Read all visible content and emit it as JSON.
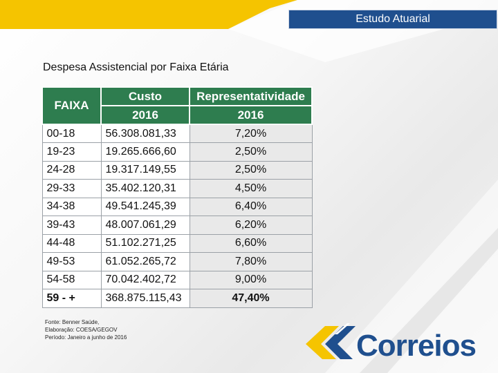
{
  "header": {
    "title": "Estudo Atuarial"
  },
  "slide": {
    "title": "Despesa Assistencial por Faixa Etária"
  },
  "table": {
    "headers": {
      "faixa": "FAIXA",
      "custo": "Custo",
      "representatividade": "Representatividade",
      "year_custo": "2016",
      "year_repr": "2016"
    },
    "rows": [
      {
        "faixa": "00-18",
        "custo": "56.308.081,33",
        "repr": "7,20%"
      },
      {
        "faixa": "19-23",
        "custo": "19.265.666,60",
        "repr": "2,50%"
      },
      {
        "faixa": "24-28",
        "custo": "19.317.149,55",
        "repr": "2,50%"
      },
      {
        "faixa": "29-33",
        "custo": "35.402.120,31",
        "repr": "4,50%"
      },
      {
        "faixa": "34-38",
        "custo": "49.541.245,39",
        "repr": "6,40%"
      },
      {
        "faixa": "39-43",
        "custo": "48.007.061,29",
        "repr": "6,20%"
      },
      {
        "faixa": "44-48",
        "custo": "51.102.271,25",
        "repr": "6,60%"
      },
      {
        "faixa": "49-53",
        "custo": "61.052.265,72",
        "repr": "7,80%"
      },
      {
        "faixa": "54-58",
        "custo": "70.042.402,72",
        "repr": "9,00%"
      },
      {
        "faixa": "59 - +",
        "custo": "368.875.115,43",
        "repr": "47,40%"
      }
    ]
  },
  "source": {
    "line1": "Fonte: Benner Saúde,",
    "line2": "Elaboração: COESA/GEGOV",
    "line3": "Período: Janeiro a junho de 2016"
  },
  "logo": {
    "text": "Correios",
    "icon": "correios-logo-icon"
  },
  "colors": {
    "header_blue": "#1f4f8e",
    "table_green": "#2e7d4f",
    "accent_yellow": "#f5c400"
  }
}
